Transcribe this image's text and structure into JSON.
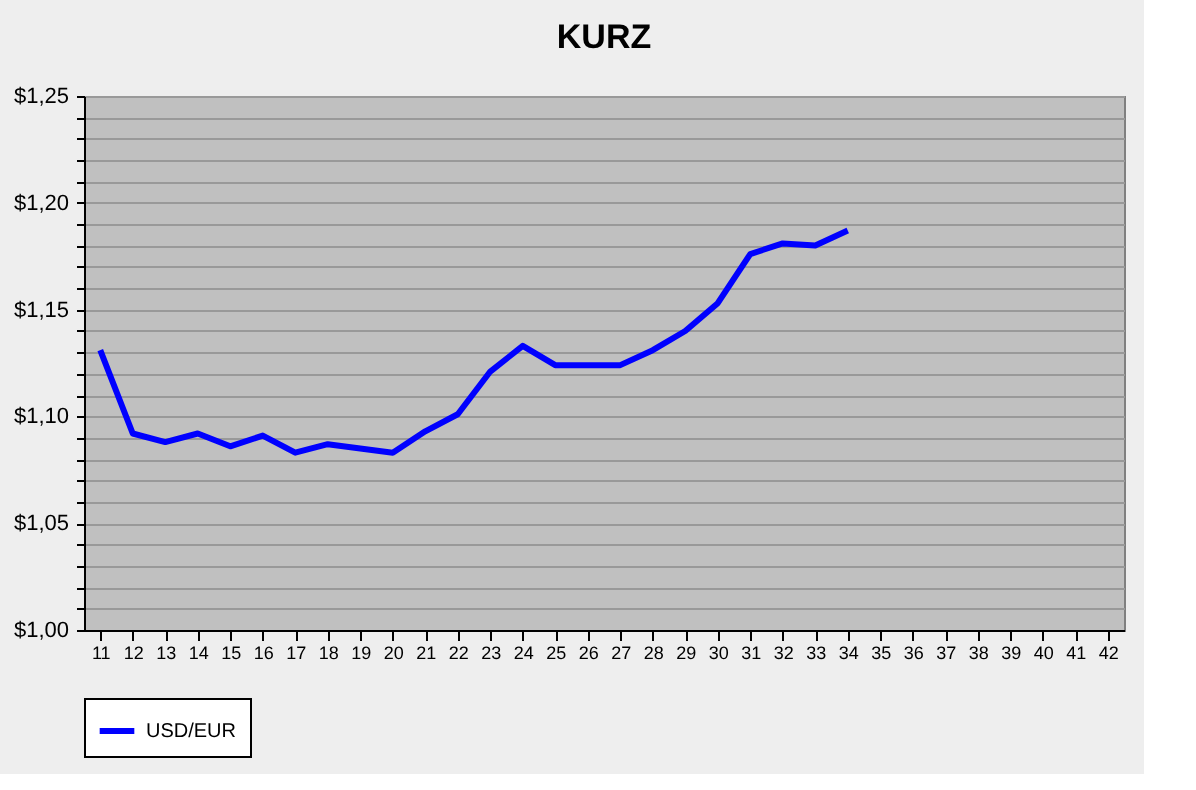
{
  "chart_data": {
    "type": "line",
    "title": "KURZ",
    "categories": [
      "11",
      "12",
      "13",
      "14",
      "15",
      "16",
      "17",
      "18",
      "19",
      "20",
      "21",
      "22",
      "23",
      "24",
      "25",
      "26",
      "27",
      "28",
      "29",
      "30",
      "31",
      "32",
      "33",
      "34",
      "35",
      "36",
      "37",
      "38",
      "39",
      "40",
      "41",
      "42"
    ],
    "series": [
      {
        "name": "USD/EUR",
        "color": "#0000ff",
        "values": [
          1.131,
          1.092,
          1.088,
          1.092,
          1.086,
          1.091,
          1.083,
          1.087,
          1.085,
          1.083,
          1.093,
          1.101,
          1.121,
          1.133,
          1.124,
          1.124,
          1.124,
          1.131,
          1.14,
          1.153,
          1.176,
          1.181,
          1.18,
          1.187,
          null,
          null,
          null,
          null,
          null,
          null,
          null,
          null
        ]
      }
    ],
    "ylim": [
      1.0,
      1.25
    ],
    "yticks": [
      {
        "value": 1.0,
        "label": "$1,00"
      },
      {
        "value": 1.01,
        "label": null
      },
      {
        "value": 1.02,
        "label": null
      },
      {
        "value": 1.03,
        "label": null
      },
      {
        "value": 1.04,
        "label": null
      },
      {
        "value": 1.05,
        "label": "$1,05"
      },
      {
        "value": 1.06,
        "label": null
      },
      {
        "value": 1.07,
        "label": null
      },
      {
        "value": 1.08,
        "label": null
      },
      {
        "value": 1.09,
        "label": null
      },
      {
        "value": 1.1,
        "label": "$1,10"
      },
      {
        "value": 1.11,
        "label": null
      },
      {
        "value": 1.12,
        "label": null
      },
      {
        "value": 1.13,
        "label": null
      },
      {
        "value": 1.14,
        "label": null
      },
      {
        "value": 1.15,
        "label": "$1,15"
      },
      {
        "value": 1.16,
        "label": null
      },
      {
        "value": 1.17,
        "label": null
      },
      {
        "value": 1.18,
        "label": null
      },
      {
        "value": 1.19,
        "label": null
      },
      {
        "value": 1.2,
        "label": "$1,20"
      },
      {
        "value": 1.21,
        "label": null
      },
      {
        "value": 1.22,
        "label": null
      },
      {
        "value": 1.23,
        "label": null
      },
      {
        "value": 1.24,
        "label": null
      },
      {
        "value": 1.25,
        "label": "$1,25"
      }
    ],
    "grid": "y",
    "legend": "bottom",
    "marker": "none",
    "line_style": "solid"
  }
}
